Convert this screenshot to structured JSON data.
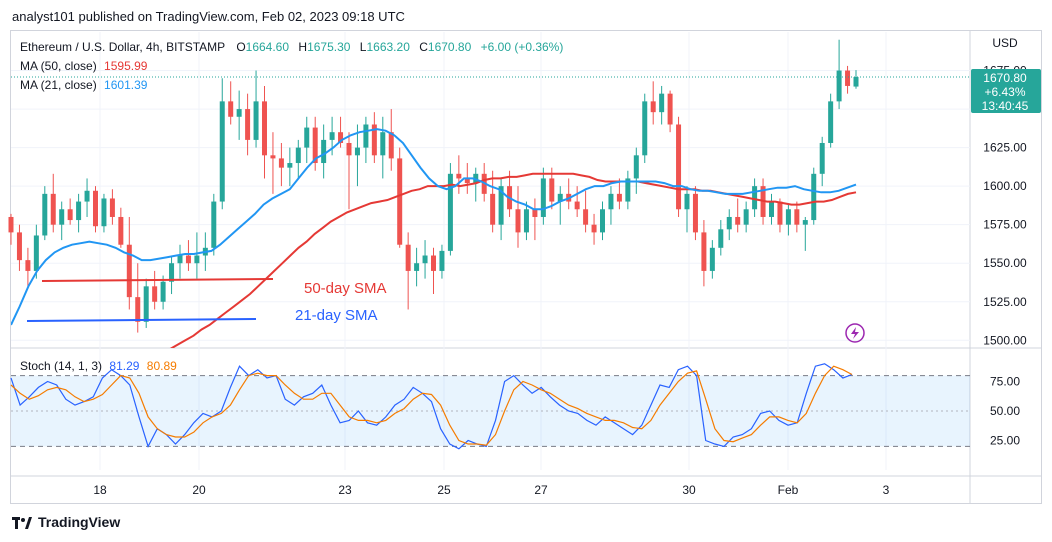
{
  "header": {
    "published": "analyst101 published on TradingView.com, Feb 02, 2023 09:18 UTC"
  },
  "legend": {
    "symbol": "Ethereum / U.S. Dollar, 4h, BITSTAMP",
    "o_label": "O",
    "o": "1664.60",
    "h_label": "H",
    "h": "1675.30",
    "l_label": "L",
    "l": "1663.20",
    "c_label": "C",
    "c": "1670.80",
    "change": "+6.00 (+0.36%)",
    "ma50_label": "MA (50, close)",
    "ma50_value": "1595.99",
    "ma21_label": "MA (21, close)",
    "ma21_value": "1601.39",
    "stoch_label": "Stoch (14, 1, 3)",
    "stoch_k": "81.29",
    "stoch_d": "80.89"
  },
  "price_tag": {
    "price": "1670.80",
    "pct": "+6.43%",
    "countdown": "13:40:45"
  },
  "annotations": {
    "sma50": "50-day SMA",
    "sma21": "21-day SMA"
  },
  "colors": {
    "up": "#26a69a",
    "down": "#ef5350",
    "ma21": "#2196f3",
    "ma50": "#e53935",
    "stoch_k": "#2962ff",
    "stoch_d": "#f57c00",
    "annot_red": "#e53935",
    "annot_blue": "#2962ff"
  },
  "footer": {
    "brand": "TradingView"
  },
  "chart_data": {
    "type": "candlestick",
    "currency": "USD",
    "y_ticks": [
      "1500.00",
      "1525.00",
      "1550.00",
      "1575.00",
      "1600.00",
      "1625.00",
      "1650.00",
      "1675.00"
    ],
    "ylim": [
      1495,
      1700
    ],
    "x_ticks": [
      "18",
      "20",
      "23",
      "25",
      "27",
      "30",
      "Feb",
      "3"
    ],
    "stoch_ticks": [
      "25.00",
      "50.00",
      "75.00"
    ],
    "stoch_bands": [
      20,
      80
    ],
    "ohlc": [
      [
        1580,
        1582,
        1562,
        1570
      ],
      [
        1570,
        1575,
        1545,
        1552
      ],
      [
        1552,
        1560,
        1535,
        1545
      ],
      [
        1545,
        1575,
        1540,
        1568
      ],
      [
        1568,
        1600,
        1565,
        1595
      ],
      [
        1595,
        1608,
        1570,
        1575
      ],
      [
        1575,
        1590,
        1565,
        1585
      ],
      [
        1585,
        1592,
        1575,
        1578
      ],
      [
        1578,
        1595,
        1570,
        1590
      ],
      [
        1590,
        1605,
        1580,
        1597
      ],
      [
        1597,
        1600,
        1570,
        1574
      ],
      [
        1574,
        1595,
        1570,
        1592
      ],
      [
        1592,
        1598,
        1575,
        1580
      ],
      [
        1580,
        1586,
        1560,
        1562
      ],
      [
        1562,
        1580,
        1520,
        1528
      ],
      [
        1528,
        1550,
        1505,
        1512
      ],
      [
        1512,
        1540,
        1508,
        1535
      ],
      [
        1535,
        1545,
        1520,
        1525
      ],
      [
        1525,
        1542,
        1520,
        1538
      ],
      [
        1538,
        1555,
        1530,
        1550
      ],
      [
        1550,
        1562,
        1540,
        1555
      ],
      [
        1555,
        1565,
        1545,
        1550
      ],
      [
        1550,
        1570,
        1540,
        1555
      ],
      [
        1555,
        1570,
        1545,
        1560
      ],
      [
        1560,
        1595,
        1555,
        1590
      ],
      [
        1590,
        1670,
        1585,
        1655
      ],
      [
        1655,
        1668,
        1640,
        1645
      ],
      [
        1645,
        1662,
        1630,
        1650
      ],
      [
        1650,
        1660,
        1620,
        1630
      ],
      [
        1630,
        1675,
        1625,
        1655
      ],
      [
        1655,
        1665,
        1605,
        1620
      ],
      [
        1620,
        1635,
        1595,
        1618
      ],
      [
        1618,
        1628,
        1600,
        1612
      ],
      [
        1612,
        1625,
        1600,
        1615
      ],
      [
        1615,
        1630,
        1605,
        1625
      ],
      [
        1625,
        1645,
        1615,
        1638
      ],
      [
        1638,
        1645,
        1610,
        1615
      ],
      [
        1615,
        1640,
        1605,
        1630
      ],
      [
        1630,
        1645,
        1620,
        1635
      ],
      [
        1635,
        1645,
        1625,
        1628
      ],
      [
        1628,
        1635,
        1585,
        1620
      ],
      [
        1620,
        1640,
        1600,
        1625
      ],
      [
        1625,
        1645,
        1615,
        1640
      ],
      [
        1640,
        1648,
        1615,
        1620
      ],
      [
        1620,
        1645,
        1605,
        1635
      ],
      [
        1635,
        1650,
        1610,
        1618
      ],
      [
        1618,
        1625,
        1560,
        1562
      ],
      [
        1562,
        1570,
        1520,
        1545
      ],
      [
        1545,
        1560,
        1535,
        1550
      ],
      [
        1550,
        1565,
        1540,
        1555
      ],
      [
        1555,
        1560,
        1530,
        1545
      ],
      [
        1545,
        1562,
        1540,
        1558
      ],
      [
        1558,
        1615,
        1555,
        1608
      ],
      [
        1608,
        1620,
        1595,
        1605
      ],
      [
        1605,
        1615,
        1595,
        1602
      ],
      [
        1602,
        1612,
        1590,
        1608
      ],
      [
        1608,
        1615,
        1590,
        1595
      ],
      [
        1595,
        1610,
        1570,
        1575
      ],
      [
        1575,
        1605,
        1565,
        1600
      ],
      [
        1600,
        1610,
        1580,
        1585
      ],
      [
        1585,
        1600,
        1560,
        1570
      ],
      [
        1570,
        1590,
        1565,
        1585
      ],
      [
        1585,
        1592,
        1565,
        1580
      ],
      [
        1580,
        1612,
        1575,
        1605
      ],
      [
        1605,
        1612,
        1585,
        1590
      ],
      [
        1590,
        1600,
        1575,
        1595
      ],
      [
        1595,
        1605,
        1585,
        1590
      ],
      [
        1590,
        1600,
        1580,
        1585
      ],
      [
        1585,
        1597,
        1570,
        1575
      ],
      [
        1575,
        1582,
        1562,
        1570
      ],
      [
        1570,
        1590,
        1565,
        1585
      ],
      [
        1585,
        1600,
        1575,
        1595
      ],
      [
        1595,
        1605,
        1585,
        1590
      ],
      [
        1590,
        1610,
        1585,
        1605
      ],
      [
        1605,
        1625,
        1595,
        1620
      ],
      [
        1620,
        1660,
        1615,
        1655
      ],
      [
        1655,
        1668,
        1640,
        1648
      ],
      [
        1648,
        1665,
        1640,
        1660
      ],
      [
        1660,
        1662,
        1635,
        1640
      ],
      [
        1640,
        1645,
        1580,
        1585
      ],
      [
        1585,
        1600,
        1570,
        1595
      ],
      [
        1595,
        1600,
        1565,
        1570
      ],
      [
        1570,
        1578,
        1535,
        1545
      ],
      [
        1545,
        1565,
        1540,
        1560
      ],
      [
        1560,
        1578,
        1555,
        1572
      ],
      [
        1572,
        1585,
        1565,
        1580
      ],
      [
        1580,
        1592,
        1570,
        1575
      ],
      [
        1575,
        1590,
        1570,
        1585
      ],
      [
        1585,
        1605,
        1580,
        1600
      ],
      [
        1600,
        1605,
        1575,
        1580
      ],
      [
        1580,
        1595,
        1575,
        1590
      ],
      [
        1590,
        1592,
        1570,
        1575
      ],
      [
        1575,
        1588,
        1568,
        1585
      ],
      [
        1585,
        1590,
        1570,
        1575
      ],
      [
        1575,
        1580,
        1558,
        1578
      ],
      [
        1578,
        1612,
        1575,
        1608
      ],
      [
        1608,
        1632,
        1600,
        1628
      ],
      [
        1628,
        1660,
        1625,
        1655
      ],
      [
        1655,
        1695,
        1650,
        1675
      ],
      [
        1675,
        1678,
        1660,
        1665
      ],
      [
        1664.6,
        1675.3,
        1663.2,
        1670.8
      ]
    ],
    "ma21": [
      1510,
      1522,
      1535,
      1545,
      1552,
      1557,
      1560,
      1562,
      1563,
      1564,
      1563,
      1562,
      1560,
      1557,
      1555,
      1552,
      1552,
      1553,
      1554,
      1555,
      1556,
      1556,
      1557,
      1558,
      1562,
      1567,
      1572,
      1577,
      1582,
      1588,
      1592,
      1595,
      1598,
      1605,
      1612,
      1618,
      1621,
      1625,
      1630,
      1633,
      1635,
      1636,
      1637,
      1636,
      1633,
      1628,
      1620,
      1612,
      1605,
      1600,
      1598,
      1600,
      1605,
      1605,
      1603,
      1600,
      1598,
      1593,
      1590,
      1588,
      1585,
      1585,
      1587,
      1590,
      1592,
      1595,
      1598,
      1600,
      1600,
      1602,
      1603,
      1603,
      1603,
      1603,
      1603,
      1602,
      1600,
      1600,
      1598,
      1597,
      1597,
      1596,
      1595,
      1595,
      1595,
      1596,
      1597,
      1598,
      1599,
      1599,
      1600,
      1598,
      1597,
      1596,
      1596,
      1597,
      1599,
      1601
    ],
    "ma50": [
      1483,
      1486,
      1490,
      1494,
      1497,
      1500,
      1503,
      1507,
      1510,
      1514,
      1518,
      1522,
      1526,
      1530,
      1535,
      1540,
      1545,
      1550,
      1555,
      1560,
      1564,
      1569,
      1573,
      1577,
      1580,
      1583,
      1585,
      1587,
      1589,
      1590,
      1591,
      1593,
      1595,
      1597,
      1598,
      1600,
      1600,
      1600,
      1601,
      1600,
      1601,
      1602,
      1604,
      1605,
      1605,
      1606,
      1606,
      1607,
      1608,
      1608,
      1608,
      1608,
      1608,
      1608,
      1607,
      1606,
      1604,
      1603,
      1603,
      1603,
      1603,
      1603,
      1602,
      1601,
      1600,
      1599,
      1598,
      1598,
      1598,
      1597,
      1597,
      1596,
      1595,
      1594,
      1593,
      1592,
      1591,
      1590,
      1590,
      1589,
      1588,
      1588,
      1589,
      1590,
      1590,
      1591,
      1593,
      1595,
      1596
    ],
    "stoch_k": [
      78,
      55,
      62,
      70,
      75,
      72,
      60,
      55,
      58,
      62,
      78,
      85,
      80,
      72,
      45,
      20,
      35,
      30,
      22,
      30,
      40,
      48,
      45,
      50,
      70,
      88,
      80,
      85,
      78,
      80,
      60,
      55,
      62,
      65,
      72,
      55,
      40,
      42,
      50,
      40,
      38,
      45,
      55,
      60,
      70,
      65,
      58,
      35,
      22,
      18,
      25,
      22,
      20,
      42,
      75,
      80,
      72,
      65,
      70,
      62,
      55,
      50,
      48,
      42,
      38,
      45,
      40,
      35,
      30,
      38,
      55,
      72,
      70,
      85,
      88,
      80,
      25,
      22,
      20,
      28,
      30,
      35,
      48,
      50,
      42,
      38,
      40,
      65,
      88,
      90,
      85,
      78,
      81
    ],
    "stoch_d": [
      72,
      65,
      60,
      63,
      68,
      70,
      68,
      62,
      58,
      60,
      64,
      72,
      80,
      78,
      65,
      45,
      35,
      30,
      28,
      28,
      32,
      40,
      45,
      48,
      55,
      68,
      80,
      82,
      80,
      80,
      72,
      65,
      60,
      60,
      65,
      65,
      55,
      45,
      42,
      42,
      40,
      42,
      48,
      52,
      60,
      65,
      64,
      55,
      38,
      25,
      22,
      22,
      21,
      30,
      50,
      68,
      75,
      72,
      68,
      65,
      60,
      55,
      52,
      48,
      45,
      42,
      42,
      40,
      36,
      35,
      42,
      55,
      65,
      75,
      82,
      84,
      60,
      35,
      25,
      24,
      27,
      30,
      38,
      45,
      45,
      42,
      40,
      48,
      65,
      80,
      88,
      85,
      80.89
    ]
  }
}
